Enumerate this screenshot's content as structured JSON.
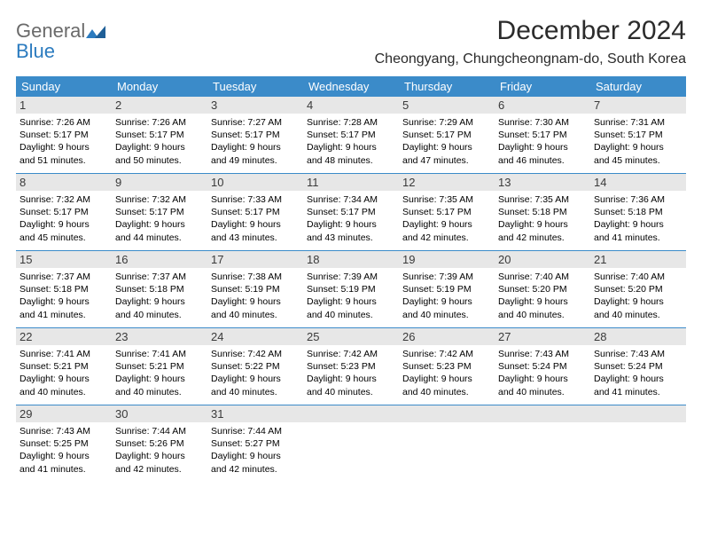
{
  "brand": {
    "part1": "General",
    "part2": "Blue"
  },
  "title": "December 2024",
  "location": "Cheongyang, Chungcheongnam-do, South Korea",
  "colors": {
    "header_bg": "#3b8bc9",
    "header_text": "#ffffff",
    "daynum_bg": "#e7e7e7",
    "daynum_text": "#3a3a3a",
    "body_text": "#000000",
    "brand_gray": "#6a6a6a",
    "brand_blue": "#2b7bbf"
  },
  "weekdays": [
    "Sunday",
    "Monday",
    "Tuesday",
    "Wednesday",
    "Thursday",
    "Friday",
    "Saturday"
  ],
  "weeks": [
    [
      {
        "n": "1",
        "sr": "Sunrise: 7:26 AM",
        "ss": "Sunset: 5:17 PM",
        "d1": "Daylight: 9 hours",
        "d2": "and 51 minutes."
      },
      {
        "n": "2",
        "sr": "Sunrise: 7:26 AM",
        "ss": "Sunset: 5:17 PM",
        "d1": "Daylight: 9 hours",
        "d2": "and 50 minutes."
      },
      {
        "n": "3",
        "sr": "Sunrise: 7:27 AM",
        "ss": "Sunset: 5:17 PM",
        "d1": "Daylight: 9 hours",
        "d2": "and 49 minutes."
      },
      {
        "n": "4",
        "sr": "Sunrise: 7:28 AM",
        "ss": "Sunset: 5:17 PM",
        "d1": "Daylight: 9 hours",
        "d2": "and 48 minutes."
      },
      {
        "n": "5",
        "sr": "Sunrise: 7:29 AM",
        "ss": "Sunset: 5:17 PM",
        "d1": "Daylight: 9 hours",
        "d2": "and 47 minutes."
      },
      {
        "n": "6",
        "sr": "Sunrise: 7:30 AM",
        "ss": "Sunset: 5:17 PM",
        "d1": "Daylight: 9 hours",
        "d2": "and 46 minutes."
      },
      {
        "n": "7",
        "sr": "Sunrise: 7:31 AM",
        "ss": "Sunset: 5:17 PM",
        "d1": "Daylight: 9 hours",
        "d2": "and 45 minutes."
      }
    ],
    [
      {
        "n": "8",
        "sr": "Sunrise: 7:32 AM",
        "ss": "Sunset: 5:17 PM",
        "d1": "Daylight: 9 hours",
        "d2": "and 45 minutes."
      },
      {
        "n": "9",
        "sr": "Sunrise: 7:32 AM",
        "ss": "Sunset: 5:17 PM",
        "d1": "Daylight: 9 hours",
        "d2": "and 44 minutes."
      },
      {
        "n": "10",
        "sr": "Sunrise: 7:33 AM",
        "ss": "Sunset: 5:17 PM",
        "d1": "Daylight: 9 hours",
        "d2": "and 43 minutes."
      },
      {
        "n": "11",
        "sr": "Sunrise: 7:34 AM",
        "ss": "Sunset: 5:17 PM",
        "d1": "Daylight: 9 hours",
        "d2": "and 43 minutes."
      },
      {
        "n": "12",
        "sr": "Sunrise: 7:35 AM",
        "ss": "Sunset: 5:17 PM",
        "d1": "Daylight: 9 hours",
        "d2": "and 42 minutes."
      },
      {
        "n": "13",
        "sr": "Sunrise: 7:35 AM",
        "ss": "Sunset: 5:18 PM",
        "d1": "Daylight: 9 hours",
        "d2": "and 42 minutes."
      },
      {
        "n": "14",
        "sr": "Sunrise: 7:36 AM",
        "ss": "Sunset: 5:18 PM",
        "d1": "Daylight: 9 hours",
        "d2": "and 41 minutes."
      }
    ],
    [
      {
        "n": "15",
        "sr": "Sunrise: 7:37 AM",
        "ss": "Sunset: 5:18 PM",
        "d1": "Daylight: 9 hours",
        "d2": "and 41 minutes."
      },
      {
        "n": "16",
        "sr": "Sunrise: 7:37 AM",
        "ss": "Sunset: 5:18 PM",
        "d1": "Daylight: 9 hours",
        "d2": "and 40 minutes."
      },
      {
        "n": "17",
        "sr": "Sunrise: 7:38 AM",
        "ss": "Sunset: 5:19 PM",
        "d1": "Daylight: 9 hours",
        "d2": "and 40 minutes."
      },
      {
        "n": "18",
        "sr": "Sunrise: 7:39 AM",
        "ss": "Sunset: 5:19 PM",
        "d1": "Daylight: 9 hours",
        "d2": "and 40 minutes."
      },
      {
        "n": "19",
        "sr": "Sunrise: 7:39 AM",
        "ss": "Sunset: 5:19 PM",
        "d1": "Daylight: 9 hours",
        "d2": "and 40 minutes."
      },
      {
        "n": "20",
        "sr": "Sunrise: 7:40 AM",
        "ss": "Sunset: 5:20 PM",
        "d1": "Daylight: 9 hours",
        "d2": "and 40 minutes."
      },
      {
        "n": "21",
        "sr": "Sunrise: 7:40 AM",
        "ss": "Sunset: 5:20 PM",
        "d1": "Daylight: 9 hours",
        "d2": "and 40 minutes."
      }
    ],
    [
      {
        "n": "22",
        "sr": "Sunrise: 7:41 AM",
        "ss": "Sunset: 5:21 PM",
        "d1": "Daylight: 9 hours",
        "d2": "and 40 minutes."
      },
      {
        "n": "23",
        "sr": "Sunrise: 7:41 AM",
        "ss": "Sunset: 5:21 PM",
        "d1": "Daylight: 9 hours",
        "d2": "and 40 minutes."
      },
      {
        "n": "24",
        "sr": "Sunrise: 7:42 AM",
        "ss": "Sunset: 5:22 PM",
        "d1": "Daylight: 9 hours",
        "d2": "and 40 minutes."
      },
      {
        "n": "25",
        "sr": "Sunrise: 7:42 AM",
        "ss": "Sunset: 5:23 PM",
        "d1": "Daylight: 9 hours",
        "d2": "and 40 minutes."
      },
      {
        "n": "26",
        "sr": "Sunrise: 7:42 AM",
        "ss": "Sunset: 5:23 PM",
        "d1": "Daylight: 9 hours",
        "d2": "and 40 minutes."
      },
      {
        "n": "27",
        "sr": "Sunrise: 7:43 AM",
        "ss": "Sunset: 5:24 PM",
        "d1": "Daylight: 9 hours",
        "d2": "and 40 minutes."
      },
      {
        "n": "28",
        "sr": "Sunrise: 7:43 AM",
        "ss": "Sunset: 5:24 PM",
        "d1": "Daylight: 9 hours",
        "d2": "and 41 minutes."
      }
    ],
    [
      {
        "n": "29",
        "sr": "Sunrise: 7:43 AM",
        "ss": "Sunset: 5:25 PM",
        "d1": "Daylight: 9 hours",
        "d2": "and 41 minutes."
      },
      {
        "n": "30",
        "sr": "Sunrise: 7:44 AM",
        "ss": "Sunset: 5:26 PM",
        "d1": "Daylight: 9 hours",
        "d2": "and 42 minutes."
      },
      {
        "n": "31",
        "sr": "Sunrise: 7:44 AM",
        "ss": "Sunset: 5:27 PM",
        "d1": "Daylight: 9 hours",
        "d2": "and 42 minutes."
      },
      {
        "n": "",
        "sr": "",
        "ss": "",
        "d1": "",
        "d2": ""
      },
      {
        "n": "",
        "sr": "",
        "ss": "",
        "d1": "",
        "d2": ""
      },
      {
        "n": "",
        "sr": "",
        "ss": "",
        "d1": "",
        "d2": ""
      },
      {
        "n": "",
        "sr": "",
        "ss": "",
        "d1": "",
        "d2": ""
      }
    ]
  ]
}
